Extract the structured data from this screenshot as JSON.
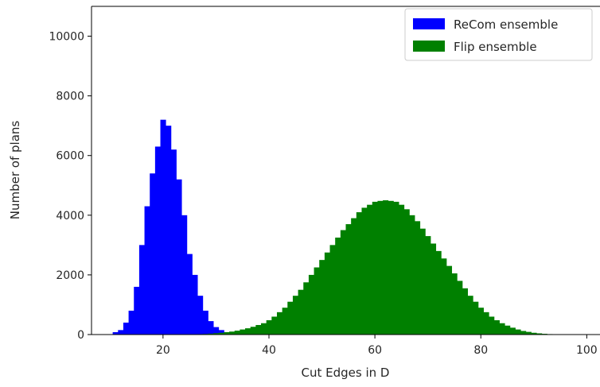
{
  "chart_data": {
    "type": "histogram",
    "title": "",
    "xlabel": "Cut Edges in D",
    "ylabel": "Number of plans",
    "xlim": [
      6.5,
      102.5
    ],
    "ylim": [
      0,
      11000
    ],
    "xticks": [
      20,
      40,
      60,
      80,
      100
    ],
    "yticks": [
      0,
      2000,
      4000,
      6000,
      8000,
      10000
    ],
    "grid": false,
    "legend_position": "upper-right",
    "bin_width": 1,
    "series": [
      {
        "name": "ReCom ensemble",
        "color": "#0000ff",
        "x": [
          11,
          12,
          13,
          14,
          15,
          16,
          17,
          18,
          19,
          20,
          21,
          22,
          23,
          24,
          25,
          26,
          27,
          28,
          29,
          30,
          31,
          32,
          33,
          34,
          35,
          36,
          37
        ],
        "values": [
          80,
          150,
          400,
          800,
          1600,
          3000,
          4300,
          5400,
          6300,
          7200,
          7000,
          6200,
          5200,
          4000,
          2700,
          2000,
          1300,
          800,
          450,
          250,
          150,
          80,
          40,
          20,
          15,
          10,
          5
        ]
      },
      {
        "name": "Flip ensemble",
        "color": "#008000",
        "x": [
          24,
          25,
          26,
          27,
          28,
          29,
          30,
          31,
          32,
          33,
          34,
          35,
          36,
          37,
          38,
          39,
          40,
          41,
          42,
          43,
          44,
          45,
          46,
          47,
          48,
          49,
          50,
          51,
          52,
          53,
          54,
          55,
          56,
          57,
          58,
          59,
          60,
          61,
          62,
          63,
          64,
          65,
          66,
          67,
          68,
          69,
          70,
          71,
          72,
          73,
          74,
          75,
          76,
          77,
          78,
          79,
          80,
          81,
          82,
          83,
          84,
          85,
          86,
          87,
          88,
          89,
          90,
          91,
          92,
          93
        ],
        "values": [
          5,
          8,
          10,
          15,
          20,
          30,
          45,
          60,
          80,
          100,
          130,
          170,
          210,
          260,
          320,
          380,
          480,
          600,
          750,
          900,
          1100,
          1300,
          1500,
          1750,
          2000,
          2250,
          2500,
          2750,
          3000,
          3250,
          3500,
          3700,
          3900,
          4100,
          4250,
          4350,
          4450,
          4480,
          4500,
          4480,
          4450,
          4350,
          4200,
          4000,
          3800,
          3550,
          3300,
          3050,
          2800,
          2550,
          2300,
          2050,
          1800,
          1550,
          1300,
          1100,
          900,
          750,
          600,
          480,
          380,
          300,
          230,
          170,
          120,
          90,
          60,
          40,
          25,
          15
        ]
      }
    ]
  }
}
